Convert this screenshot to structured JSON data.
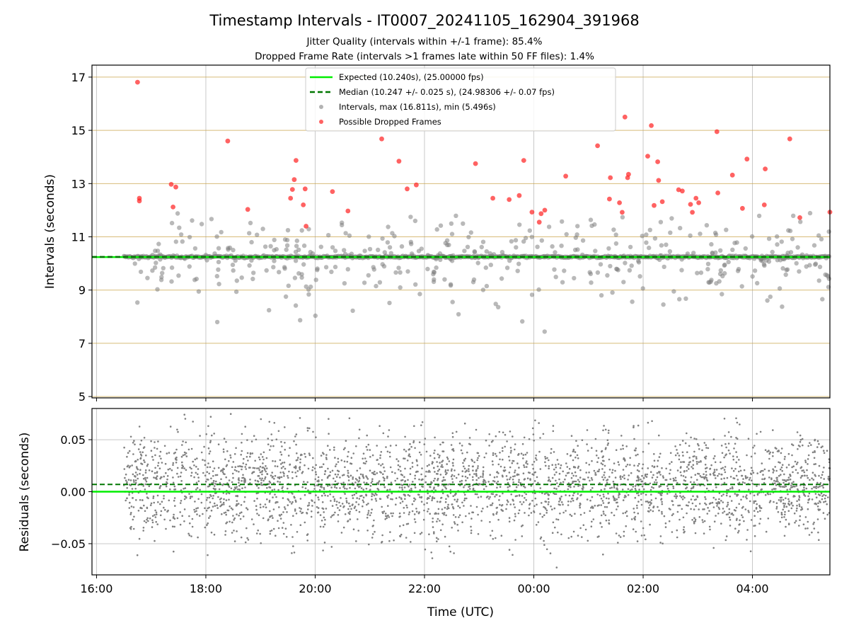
{
  "figure": {
    "title": "Timestamp Intervals - IT0007_20241105_162904_391968",
    "subtitle_1": "Jitter Quality (intervals within +/-1 frame): 85.4%",
    "subtitle_2": "Dropped Frame Rate (intervals >1 frames late within 50 FF files): 1.4%"
  },
  "colors": {
    "expected": "#00ee00",
    "median": "#007700",
    "intervals": "#808080",
    "dropped": "#ff2020",
    "gridline": "#c8a040"
  },
  "chart_data": [
    {
      "type": "scatter",
      "name": "intervals",
      "ylabel": "Intervals (seconds)",
      "ylim": [
        4.95,
        17.45
      ],
      "yticks": [
        5,
        7,
        9,
        11,
        13,
        15,
        17
      ],
      "xlim": [
        "2024-11-05T15:55",
        "2024-11-06T05:25"
      ],
      "xticks": [
        "16:00",
        "18:00",
        "20:00",
        "22:00",
        "00:00",
        "02:00",
        "04:00"
      ],
      "grid": true,
      "legend_position": "top-center",
      "legend": [
        {
          "label": "Expected (10.240s), (25.00000 fps)",
          "style": "solid-line",
          "color": "#00ee00"
        },
        {
          "label": "Median (10.247 +/- 0.025 s), (24.98306 +/- 0.07 fps)",
          "style": "dashed-line",
          "color": "#007700"
        },
        {
          "label": "Intervals, max (16.811s), min (5.496s)",
          "style": "marker",
          "color": "#808080"
        },
        {
          "label": "Possible Dropped Frames",
          "style": "marker",
          "color": "#ff2020"
        }
      ],
      "expected_interval": 10.24,
      "median_interval": 10.247,
      "dropped_frames": [
        [
          "16:45",
          16.81
        ],
        [
          "16:47",
          12.45
        ],
        [
          "16:47",
          12.35
        ],
        [
          "17:22",
          12.97
        ],
        [
          "17:24",
          12.12
        ],
        [
          "17:27",
          12.87
        ],
        [
          "18:24",
          14.6
        ],
        [
          "18:46",
          12.03
        ],
        [
          "19:33",
          12.45
        ],
        [
          "19:35",
          12.78
        ],
        [
          "19:37",
          13.15
        ],
        [
          "19:39",
          13.87
        ],
        [
          "19:47",
          12.2
        ],
        [
          "19:49",
          12.8
        ],
        [
          "19:50",
          11.4
        ],
        [
          "20:19",
          12.7
        ],
        [
          "20:36",
          11.97
        ],
        [
          "21:13",
          14.68
        ],
        [
          "21:32",
          13.84
        ],
        [
          "21:41",
          12.8
        ],
        [
          "21:51",
          12.95
        ],
        [
          "22:56",
          13.75
        ],
        [
          "23:15",
          12.45
        ],
        [
          "23:33",
          12.4
        ],
        [
          "23:44",
          12.55
        ],
        [
          "23:49",
          13.87
        ],
        [
          "23:58",
          11.93
        ],
        [
          "00:06",
          11.55
        ],
        [
          "00:08",
          11.87
        ],
        [
          "00:12",
          12.0
        ],
        [
          "00:35",
          13.28
        ],
        [
          "01:10",
          14.42
        ],
        [
          "01:23",
          12.42
        ],
        [
          "01:24",
          13.22
        ],
        [
          "01:34",
          12.28
        ],
        [
          "01:37",
          11.92
        ],
        [
          "01:40",
          15.5
        ],
        [
          "01:43",
          13.22
        ],
        [
          "01:44",
          13.35
        ],
        [
          "02:05",
          14.03
        ],
        [
          "02:09",
          15.18
        ],
        [
          "02:12",
          12.18
        ],
        [
          "02:16",
          13.82
        ],
        [
          "02:17",
          13.12
        ],
        [
          "02:21",
          12.32
        ],
        [
          "02:39",
          12.77
        ],
        [
          "02:43",
          12.72
        ],
        [
          "02:52",
          12.22
        ],
        [
          "02:54",
          11.92
        ],
        [
          "02:58",
          12.45
        ],
        [
          "03:01",
          12.28
        ],
        [
          "03:21",
          14.95
        ],
        [
          "03:22",
          12.65
        ],
        [
          "03:38",
          13.32
        ],
        [
          "03:49",
          12.07
        ],
        [
          "03:54",
          13.92
        ],
        [
          "04:13",
          12.2
        ],
        [
          "04:14",
          13.55
        ],
        [
          "04:41",
          14.68
        ],
        [
          "04:52",
          11.72
        ],
        [
          "05:25",
          11.93
        ]
      ],
      "points_note": ""
    },
    {
      "type": "scatter",
      "name": "residuals",
      "xlabel": "Time (UTC)",
      "ylabel": "Residuals (seconds)",
      "ylim": [
        -0.08,
        0.08
      ],
      "yticks": [
        0.05,
        0.0,
        -0.05
      ],
      "ytick_labels": [
        "0.05",
        "0.00",
        "−0.05"
      ],
      "xlim": [
        "2024-11-05T15:55",
        "2024-11-06T05:25"
      ],
      "xticks": [
        "16:00",
        "18:00",
        "20:00",
        "22:00",
        "00:00",
        "02:00",
        "04:00"
      ],
      "grid": true,
      "expected_residual": 0.0,
      "median_residual": 0.007,
      "residual_std": 0.025
    }
  ]
}
